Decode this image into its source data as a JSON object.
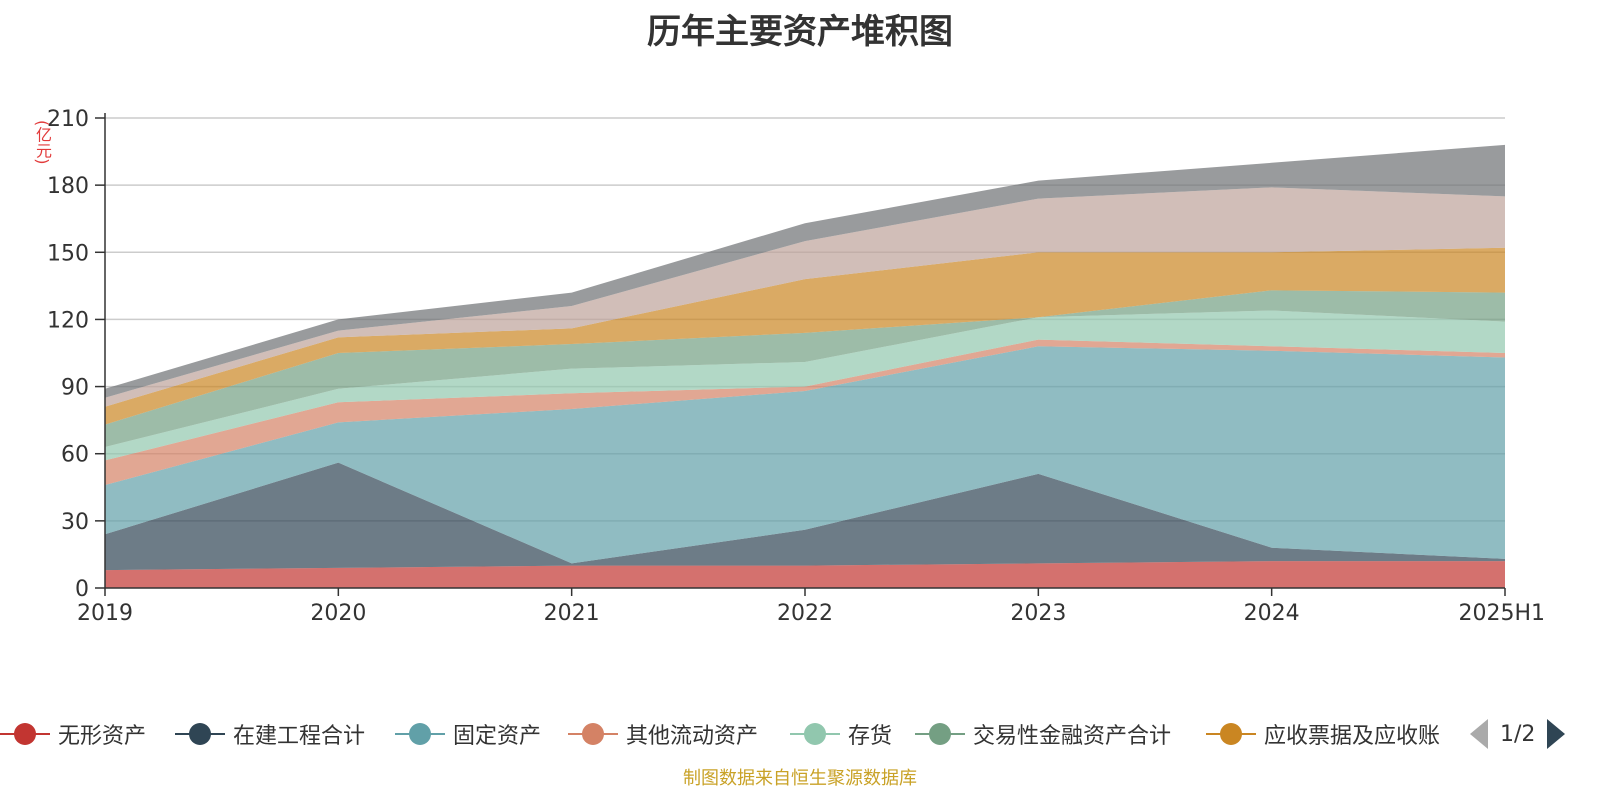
{
  "chart_data": {
    "type": "area",
    "stacked": true,
    "title": "历年主要资产堆积图",
    "unit_label": "(亿元)",
    "categories": [
      "2019",
      "2020",
      "2021",
      "2022",
      "2023",
      "2024",
      "2025H1"
    ],
    "ylim": [
      0,
      210
    ],
    "yticks": [
      0,
      30,
      60,
      90,
      120,
      150,
      180,
      210
    ],
    "grid": true,
    "legend_position": "bottom",
    "series": [
      {
        "name": "无形资产",
        "color": "#c23531",
        "values": [
          8,
          9,
          10,
          10,
          11,
          12,
          12
        ]
      },
      {
        "name": "在建工程合计",
        "color": "#2f4554",
        "values": [
          16,
          47,
          1,
          16,
          40,
          6,
          1
        ]
      },
      {
        "name": "固定资产",
        "color": "#61a0a8",
        "values": [
          22,
          18,
          69,
          62,
          57,
          88,
          90
        ]
      },
      {
        "name": "其他流动资产",
        "color": "#d48265",
        "values": [
          11,
          9,
          7,
          2,
          3,
          2,
          2
        ]
      },
      {
        "name": "存货",
        "color": "#91c7ae",
        "values": [
          6,
          6,
          11,
          11,
          10,
          16,
          14
        ]
      },
      {
        "name": "交易性金融资产合计",
        "color": "#749f83",
        "values": [
          10,
          16,
          11,
          13,
          0,
          9,
          13
        ]
      },
      {
        "name": "应收票据及应收账",
        "color": "#ca8622",
        "values": [
          8,
          7,
          7,
          24,
          29,
          17,
          20
        ]
      },
      {
        "name": "",
        "color": "#bda29a",
        "values": [
          4,
          3,
          10,
          17,
          24,
          29,
          23
        ]
      },
      {
        "name": "",
        "color": "#6e7074",
        "values": [
          4,
          5,
          6,
          8,
          8,
          11,
          23
        ]
      }
    ],
    "legend_pager": "1/2",
    "source_note": "制图数据来自恒生聚源数据库"
  }
}
